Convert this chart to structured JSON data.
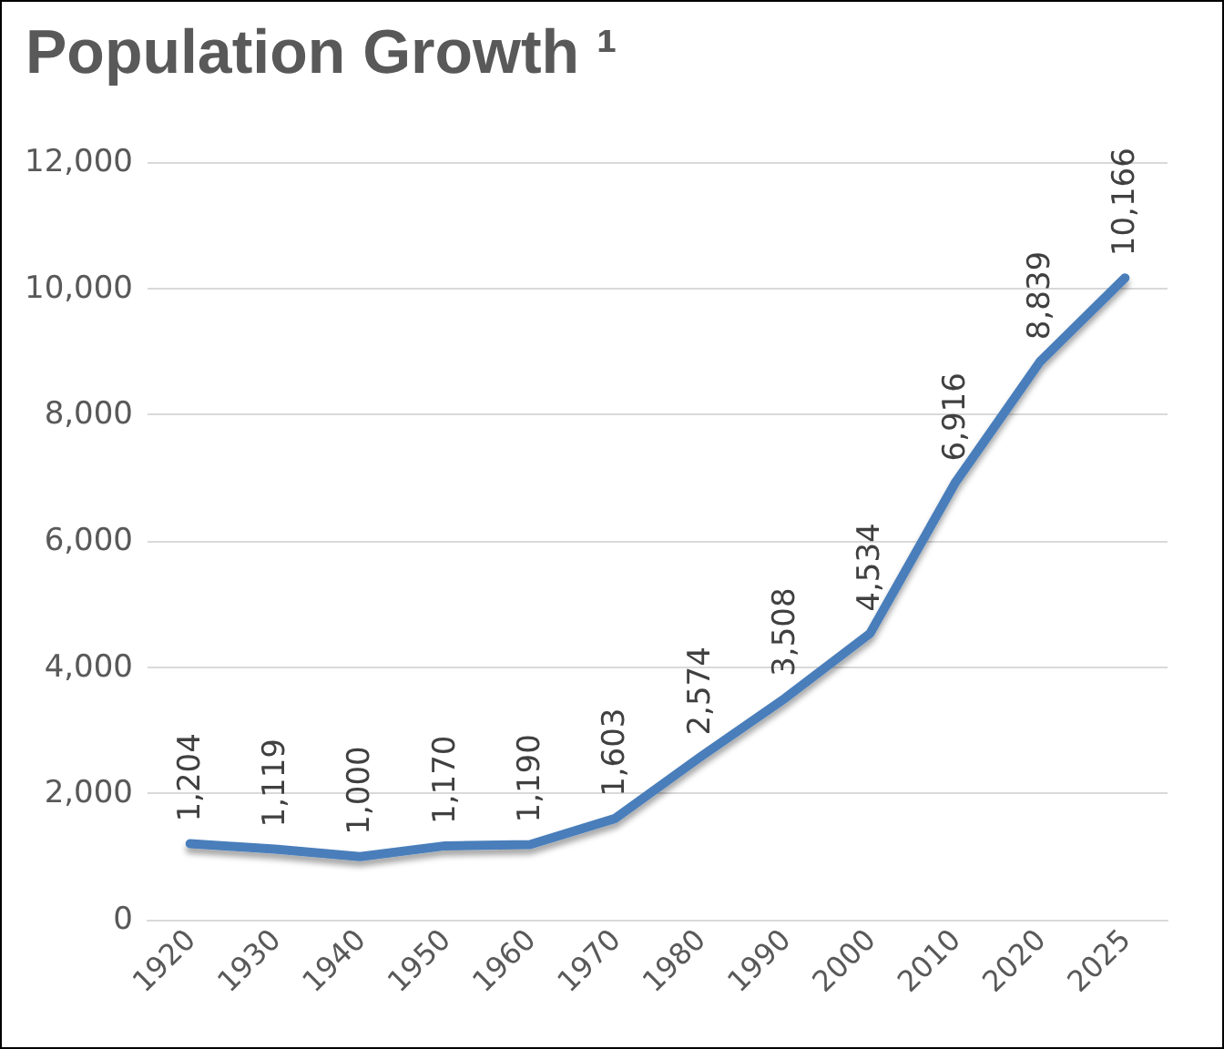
{
  "chart_data": {
    "type": "line",
    "title": "Population Growth ¹",
    "categories": [
      "1920",
      "1930",
      "1940",
      "1950",
      "1960",
      "1970",
      "1980",
      "1990",
      "2000",
      "2010",
      "2020",
      "2025"
    ],
    "values": [
      1204,
      1119,
      1000,
      1170,
      1190,
      1603,
      2574,
      3508,
      4534,
      6916,
      8839,
      10166
    ],
    "color": "#4a7ebb",
    "ylim": [
      0,
      12000
    ],
    "yticks": [
      0,
      {
        "value": 2000,
        "label": "2,000"
      },
      {
        "value": 4000,
        "label": "4,000"
      },
      {
        "value": 6000,
        "label": "6,000"
      },
      {
        "value": 8000,
        "label": "8,000"
      },
      {
        "value": 10000,
        "label": "10,000"
      },
      {
        "value": 12000,
        "label": "12,000"
      }
    ],
    "value_labels": [
      "1,204",
      "1,119",
      "1,000",
      "1,170",
      "1,190",
      "1,603",
      "2,574",
      "3,508",
      "4,534",
      "6,916",
      "8,839",
      "10,166"
    ],
    "grid": "y",
    "marker": "none",
    "line_style": "solid"
  }
}
